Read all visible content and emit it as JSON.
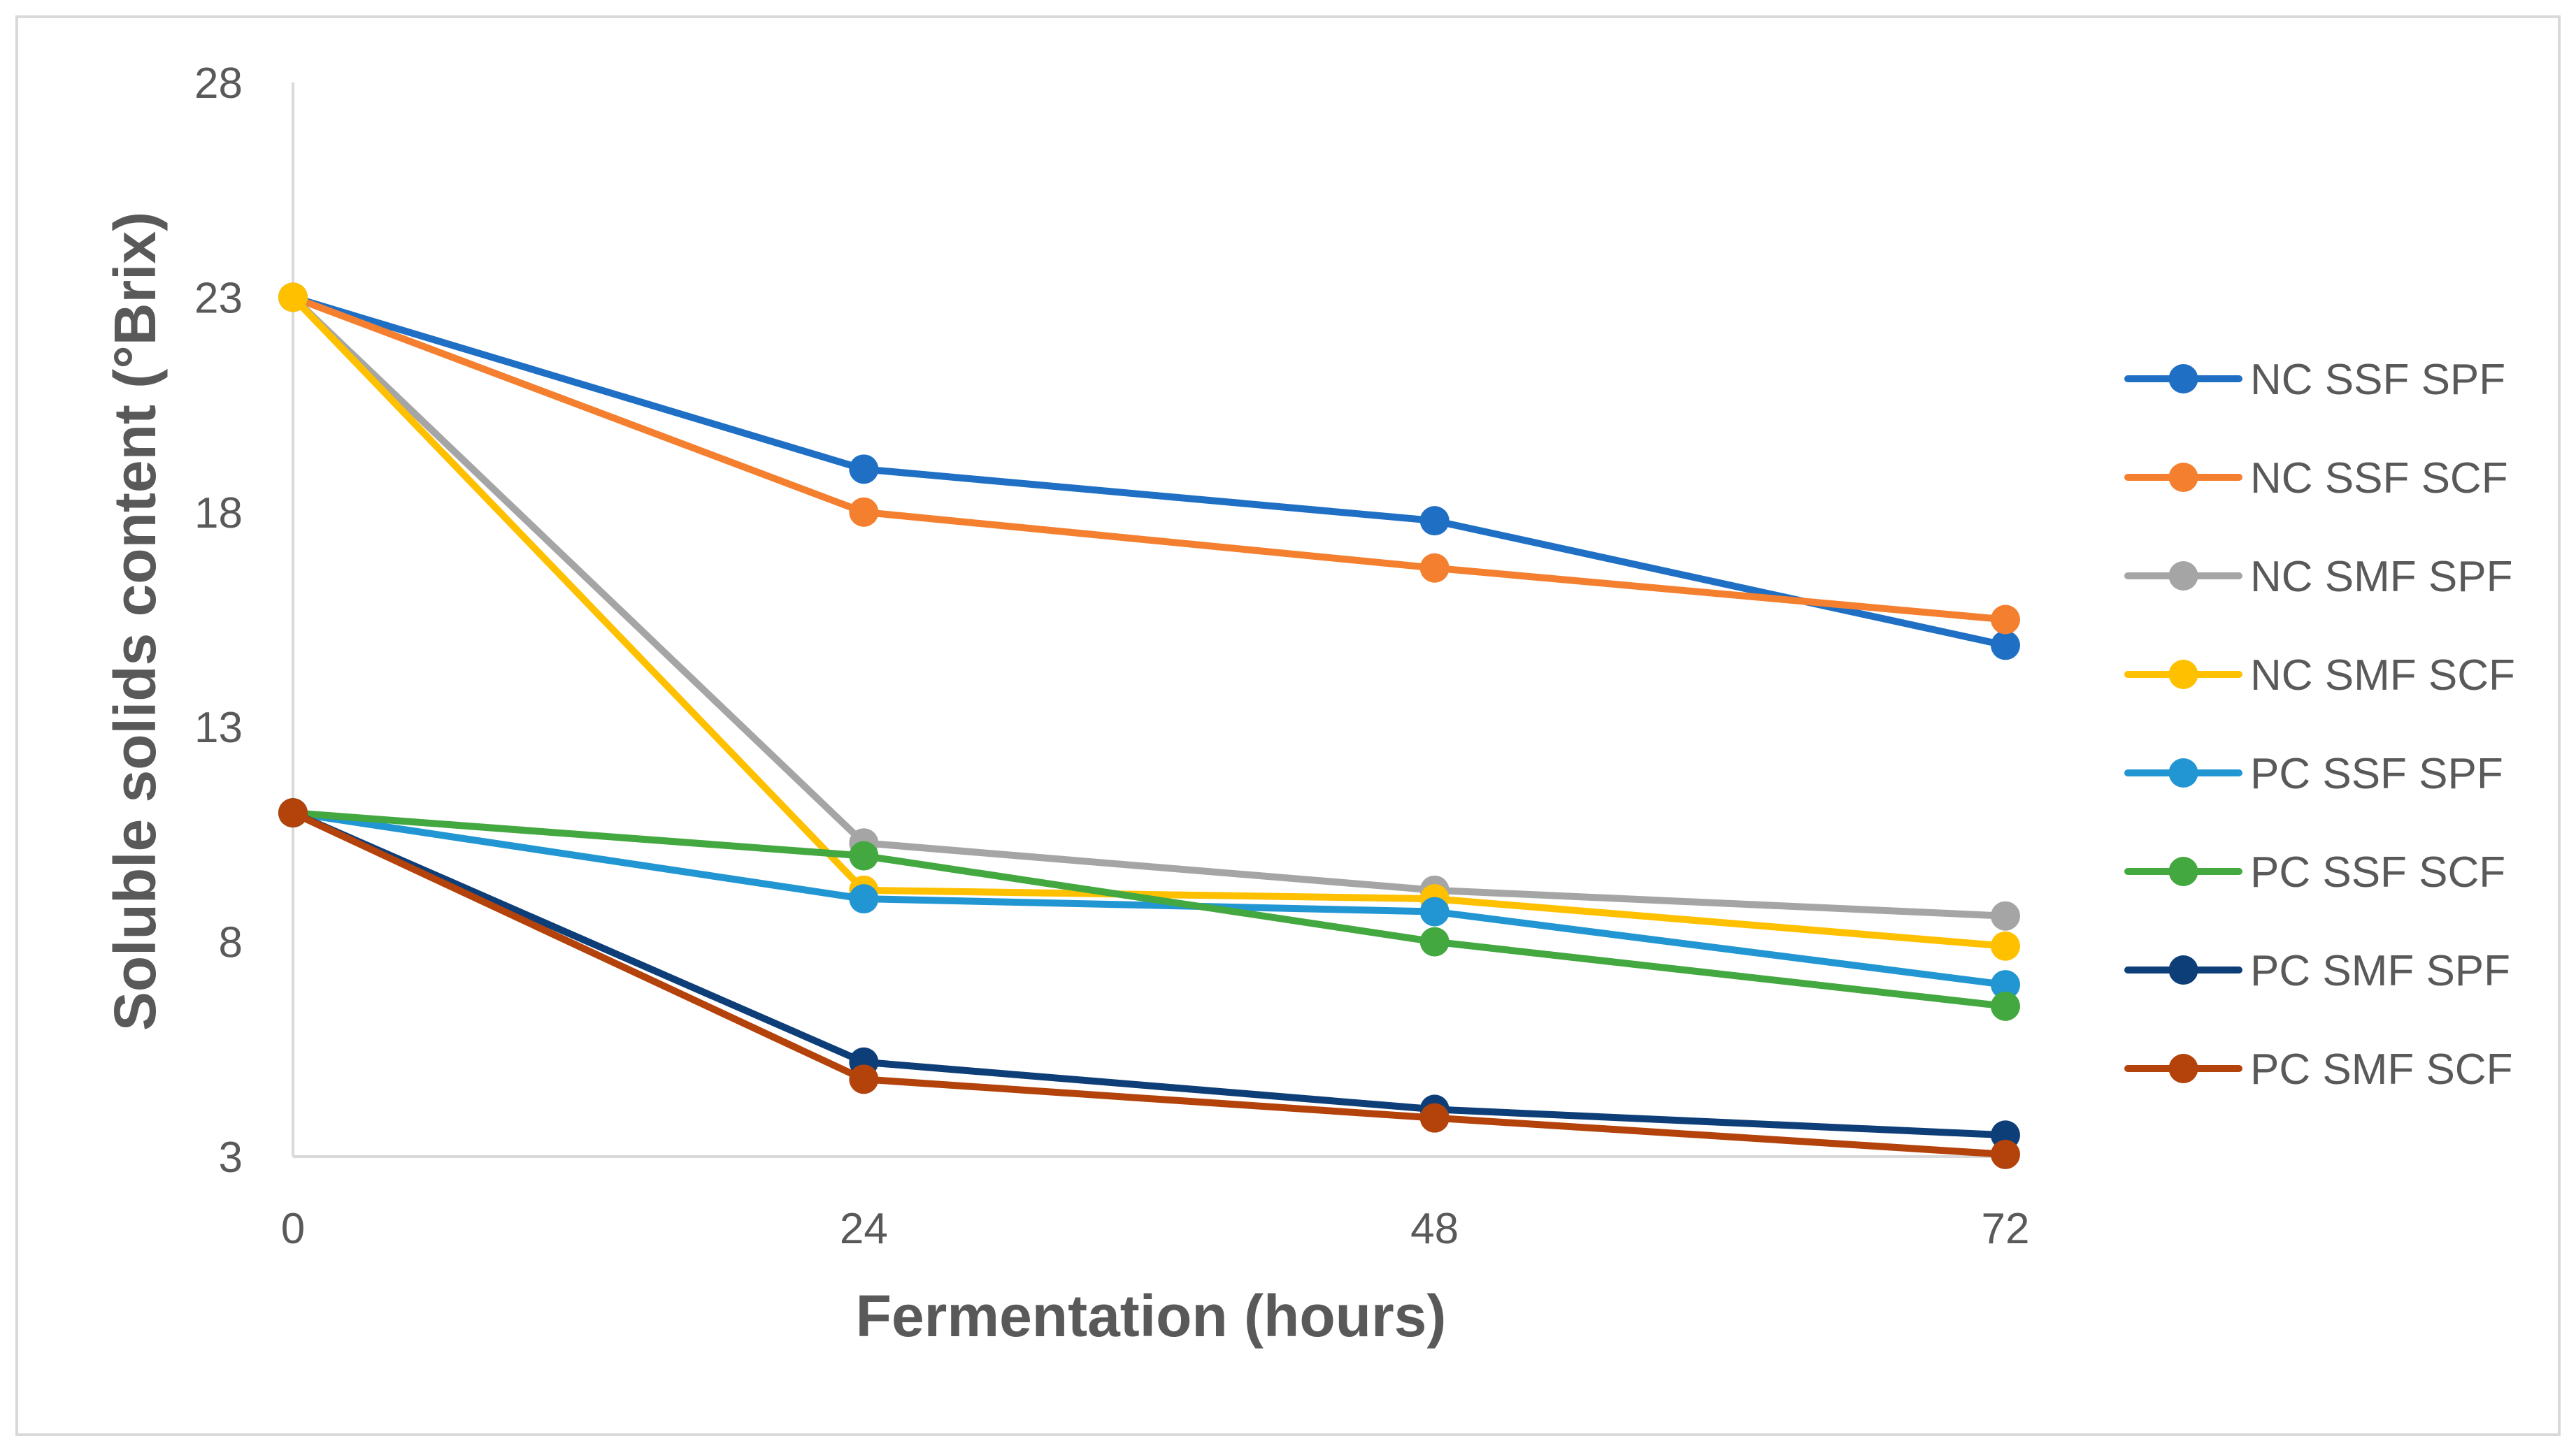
{
  "chart_data": {
    "type": "line",
    "title": "",
    "xlabel": "Fermentation (hours)",
    "ylabel": "Soluble solids content (°Brix)",
    "x": [
      0,
      24,
      48,
      72
    ],
    "xticks": [
      "0",
      "24",
      "48",
      "72"
    ],
    "xlim": [
      0,
      72
    ],
    "yticks": [
      "3",
      "8",
      "13",
      "18",
      "23",
      "28"
    ],
    "ylim": [
      3,
      28
    ],
    "grid": false,
    "legend": "right",
    "series": [
      {
        "name": "NC SSF SPF",
        "color": "#1F6FC4",
        "values": [
          23.0,
          19.0,
          17.8,
          14.9
        ]
      },
      {
        "name": "NC SSF SCF",
        "color": "#F47F2F",
        "values": [
          23.0,
          18.0,
          16.7,
          15.5
        ]
      },
      {
        "name": "NC SMF SPF",
        "color": "#A5A5A5",
        "values": [
          23.0,
          10.3,
          9.2,
          8.6
        ]
      },
      {
        "name": "NC SMF SCF",
        "color": "#FFC000",
        "values": [
          23.0,
          9.2,
          9.0,
          7.9
        ]
      },
      {
        "name": "PC SSF SPF",
        "color": "#2196D3",
        "values": [
          11.0,
          9.0,
          8.7,
          7.0
        ]
      },
      {
        "name": "PC SSF SCF",
        "color": "#43A83F",
        "values": [
          11.0,
          10.0,
          8.0,
          6.5
        ]
      },
      {
        "name": "PC SMF SPF",
        "color": "#0D3E78",
        "values": [
          11.0,
          5.2,
          4.1,
          3.5
        ]
      },
      {
        "name": "PC SMF SCF",
        "color": "#B3420B",
        "values": [
          11.0,
          4.8,
          3.9,
          3.05
        ]
      }
    ]
  }
}
